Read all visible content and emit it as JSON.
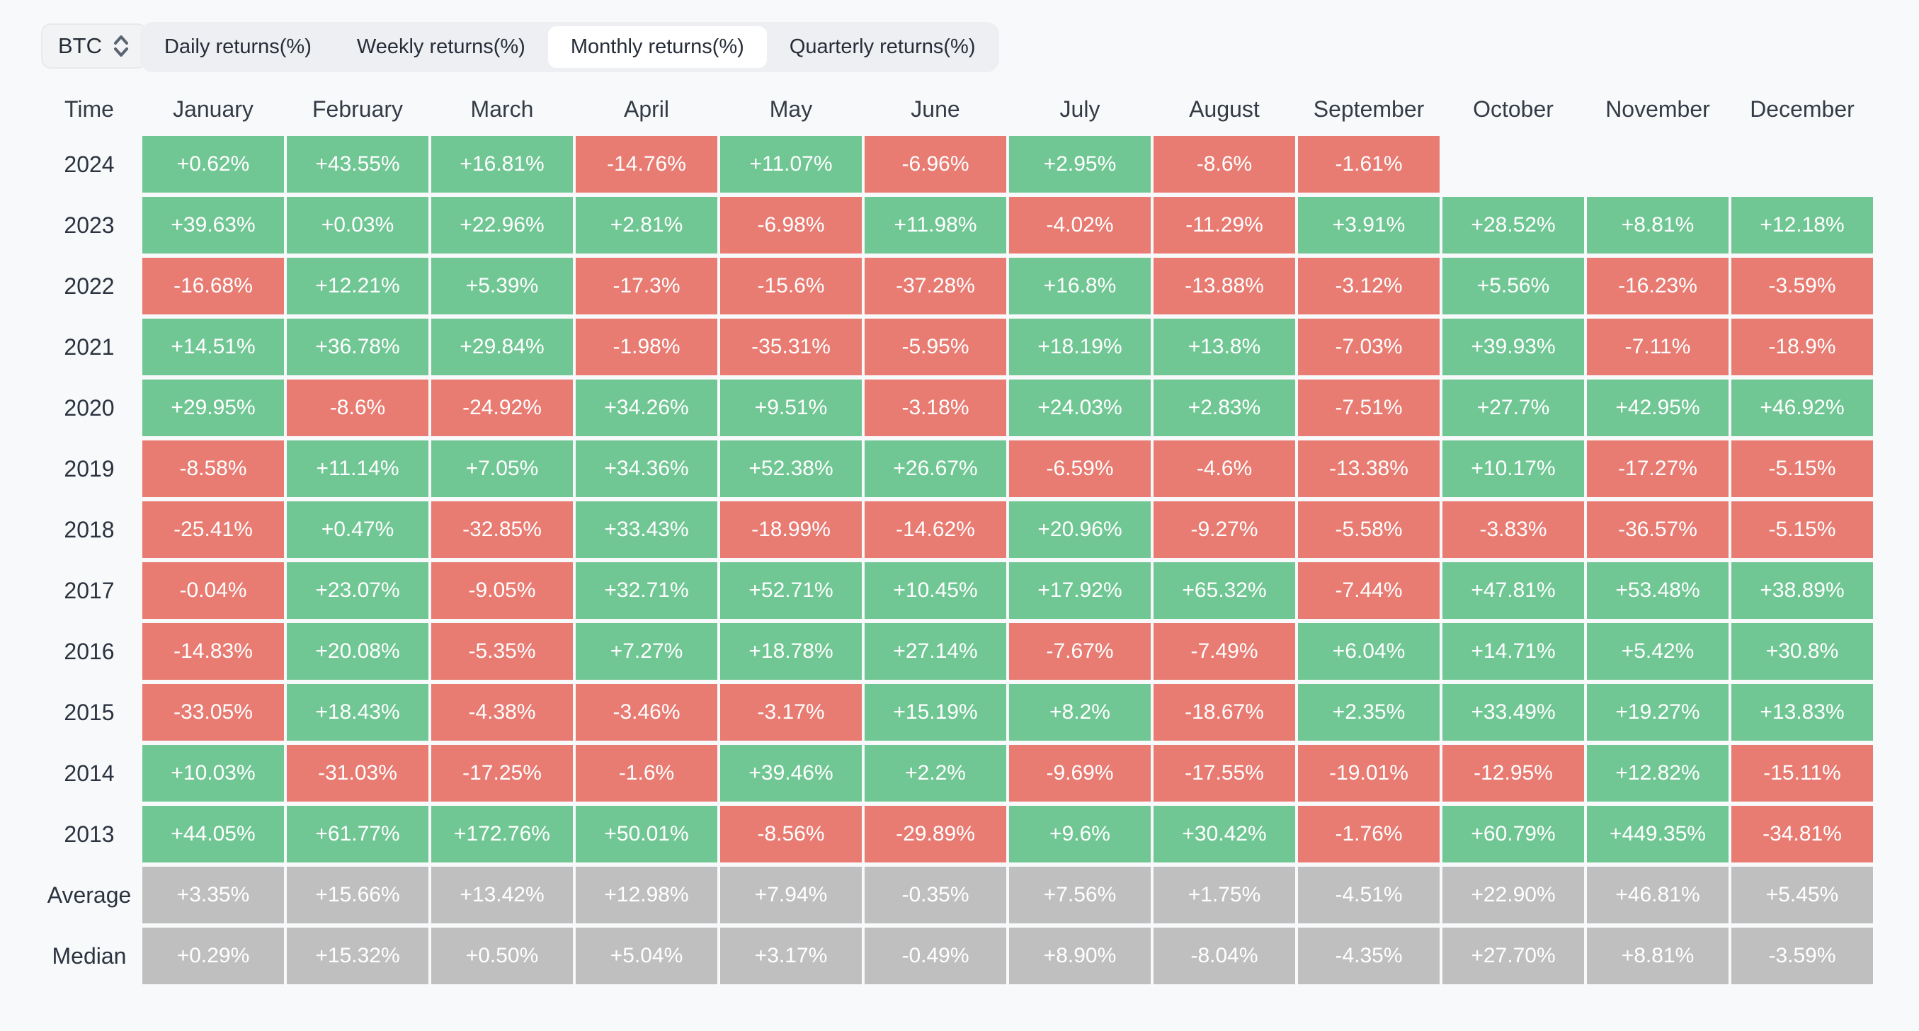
{
  "selector": {
    "label": "BTC"
  },
  "tabs": {
    "items": [
      "Daily returns(%)",
      "Weekly returns(%)",
      "Monthly returns(%)",
      "Quarterly returns(%)"
    ],
    "active": "Monthly returns(%)"
  },
  "table": {
    "time_header": "Time",
    "month_headers": [
      "January",
      "February",
      "March",
      "April",
      "May",
      "June",
      "July",
      "August",
      "September",
      "October",
      "November",
      "December"
    ],
    "rows": [
      {
        "label": "2024",
        "type": "year",
        "values": [
          "+0.62%",
          "+43.55%",
          "+16.81%",
          "-14.76%",
          "+11.07%",
          "-6.96%",
          "+2.95%",
          "-8.6%",
          "-1.61%",
          "",
          "",
          ""
        ]
      },
      {
        "label": "2023",
        "type": "year",
        "values": [
          "+39.63%",
          "+0.03%",
          "+22.96%",
          "+2.81%",
          "-6.98%",
          "+11.98%",
          "-4.02%",
          "-11.29%",
          "+3.91%",
          "+28.52%",
          "+8.81%",
          "+12.18%"
        ]
      },
      {
        "label": "2022",
        "type": "year",
        "values": [
          "-16.68%",
          "+12.21%",
          "+5.39%",
          "-17.3%",
          "-15.6%",
          "-37.28%",
          "+16.8%",
          "-13.88%",
          "-3.12%",
          "+5.56%",
          "-16.23%",
          "-3.59%"
        ]
      },
      {
        "label": "2021",
        "type": "year",
        "values": [
          "+14.51%",
          "+36.78%",
          "+29.84%",
          "-1.98%",
          "-35.31%",
          "-5.95%",
          "+18.19%",
          "+13.8%",
          "-7.03%",
          "+39.93%",
          "-7.11%",
          "-18.9%"
        ]
      },
      {
        "label": "2020",
        "type": "year",
        "values": [
          "+29.95%",
          "-8.6%",
          "-24.92%",
          "+34.26%",
          "+9.51%",
          "-3.18%",
          "+24.03%",
          "+2.83%",
          "-7.51%",
          "+27.7%",
          "+42.95%",
          "+46.92%"
        ]
      },
      {
        "label": "2019",
        "type": "year",
        "values": [
          "-8.58%",
          "+11.14%",
          "+7.05%",
          "+34.36%",
          "+52.38%",
          "+26.67%",
          "-6.59%",
          "-4.6%",
          "-13.38%",
          "+10.17%",
          "-17.27%",
          "-5.15%"
        ]
      },
      {
        "label": "2018",
        "type": "year",
        "values": [
          "-25.41%",
          "+0.47%",
          "-32.85%",
          "+33.43%",
          "-18.99%",
          "-14.62%",
          "+20.96%",
          "-9.27%",
          "-5.58%",
          "-3.83%",
          "-36.57%",
          "-5.15%"
        ]
      },
      {
        "label": "2017",
        "type": "year",
        "values": [
          "-0.04%",
          "+23.07%",
          "-9.05%",
          "+32.71%",
          "+52.71%",
          "+10.45%",
          "+17.92%",
          "+65.32%",
          "-7.44%",
          "+47.81%",
          "+53.48%",
          "+38.89%"
        ]
      },
      {
        "label": "2016",
        "type": "year",
        "values": [
          "-14.83%",
          "+20.08%",
          "-5.35%",
          "+7.27%",
          "+18.78%",
          "+27.14%",
          "-7.67%",
          "-7.49%",
          "+6.04%",
          "+14.71%",
          "+5.42%",
          "+30.8%"
        ]
      },
      {
        "label": "2015",
        "type": "year",
        "values": [
          "-33.05%",
          "+18.43%",
          "-4.38%",
          "-3.46%",
          "-3.17%",
          "+15.19%",
          "+8.2%",
          "-18.67%",
          "+2.35%",
          "+33.49%",
          "+19.27%",
          "+13.83%"
        ]
      },
      {
        "label": "2014",
        "type": "year",
        "values": [
          "+10.03%",
          "-31.03%",
          "-17.25%",
          "-1.6%",
          "+39.46%",
          "+2.2%",
          "-9.69%",
          "-17.55%",
          "-19.01%",
          "-12.95%",
          "+12.82%",
          "-15.11%"
        ]
      },
      {
        "label": "2013",
        "type": "year",
        "values": [
          "+44.05%",
          "+61.77%",
          "+172.76%",
          "+50.01%",
          "-8.56%",
          "-29.89%",
          "+9.6%",
          "+30.42%",
          "-1.76%",
          "+60.79%",
          "+449.35%",
          "-34.81%"
        ]
      },
      {
        "label": "Average",
        "type": "summary",
        "values": [
          "+3.35%",
          "+15.66%",
          "+13.42%",
          "+12.98%",
          "+7.94%",
          "-0.35%",
          "+7.56%",
          "+1.75%",
          "-4.51%",
          "+22.90%",
          "+46.81%",
          "+5.45%"
        ]
      },
      {
        "label": "Median",
        "type": "summary",
        "values": [
          "+0.29%",
          "+15.32%",
          "+0.50%",
          "+5.04%",
          "+3.17%",
          "-0.49%",
          "+8.90%",
          "-8.04%",
          "-4.35%",
          "+27.70%",
          "+8.81%",
          "-3.59%"
        ]
      }
    ]
  },
  "colors": {
    "positive": "#70c794",
    "negative": "#e87b72",
    "summary": "#bfbfbf",
    "page_background": "#f8f9fa",
    "tab_group_background": "#edeff2",
    "active_tab_background": "#ffffff",
    "cell_text": "#ffffff",
    "label_text": "#2b3340"
  }
}
